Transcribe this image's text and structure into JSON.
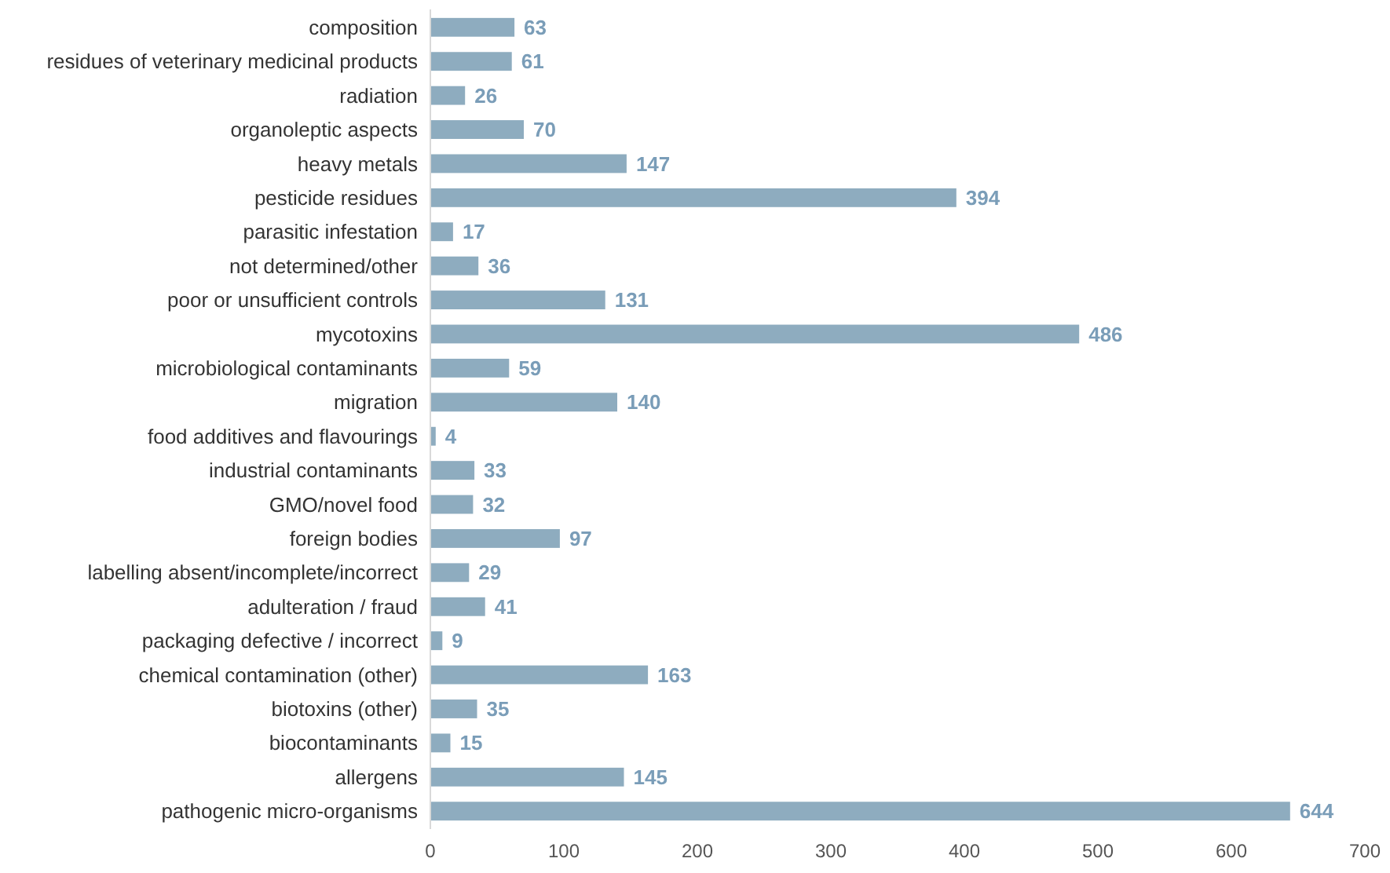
{
  "chart_data": {
    "type": "bar",
    "orientation": "horizontal",
    "categories": [
      "composition",
      "residues of veterinary medicinal products",
      "radiation",
      "organoleptic aspects",
      "heavy metals",
      "pesticide residues",
      "parasitic infestation",
      "not determined/other",
      "poor or unsufficient controls",
      "mycotoxins",
      "microbiological contaminants",
      "migration",
      "food additives and flavourings",
      "industrial contaminants",
      "GMO/novel food",
      "foreign bodies",
      "labelling absent/incomplete/incorrect",
      "adulteration / fraud",
      "packaging defective / incorrect",
      "chemical contamination (other)",
      "biotoxins (other)",
      "biocontaminants",
      "allergens",
      "pathogenic micro-organisms"
    ],
    "values": [
      63,
      61,
      26,
      70,
      147,
      394,
      17,
      36,
      131,
      486,
      59,
      140,
      4,
      33,
      32,
      97,
      29,
      41,
      9,
      163,
      35,
      15,
      145,
      644
    ],
    "color": "#8eacbf",
    "data_labels": true,
    "xlim": [
      0,
      700
    ],
    "xticks": [
      0,
      100,
      200,
      300,
      400,
      500,
      600,
      700
    ]
  }
}
